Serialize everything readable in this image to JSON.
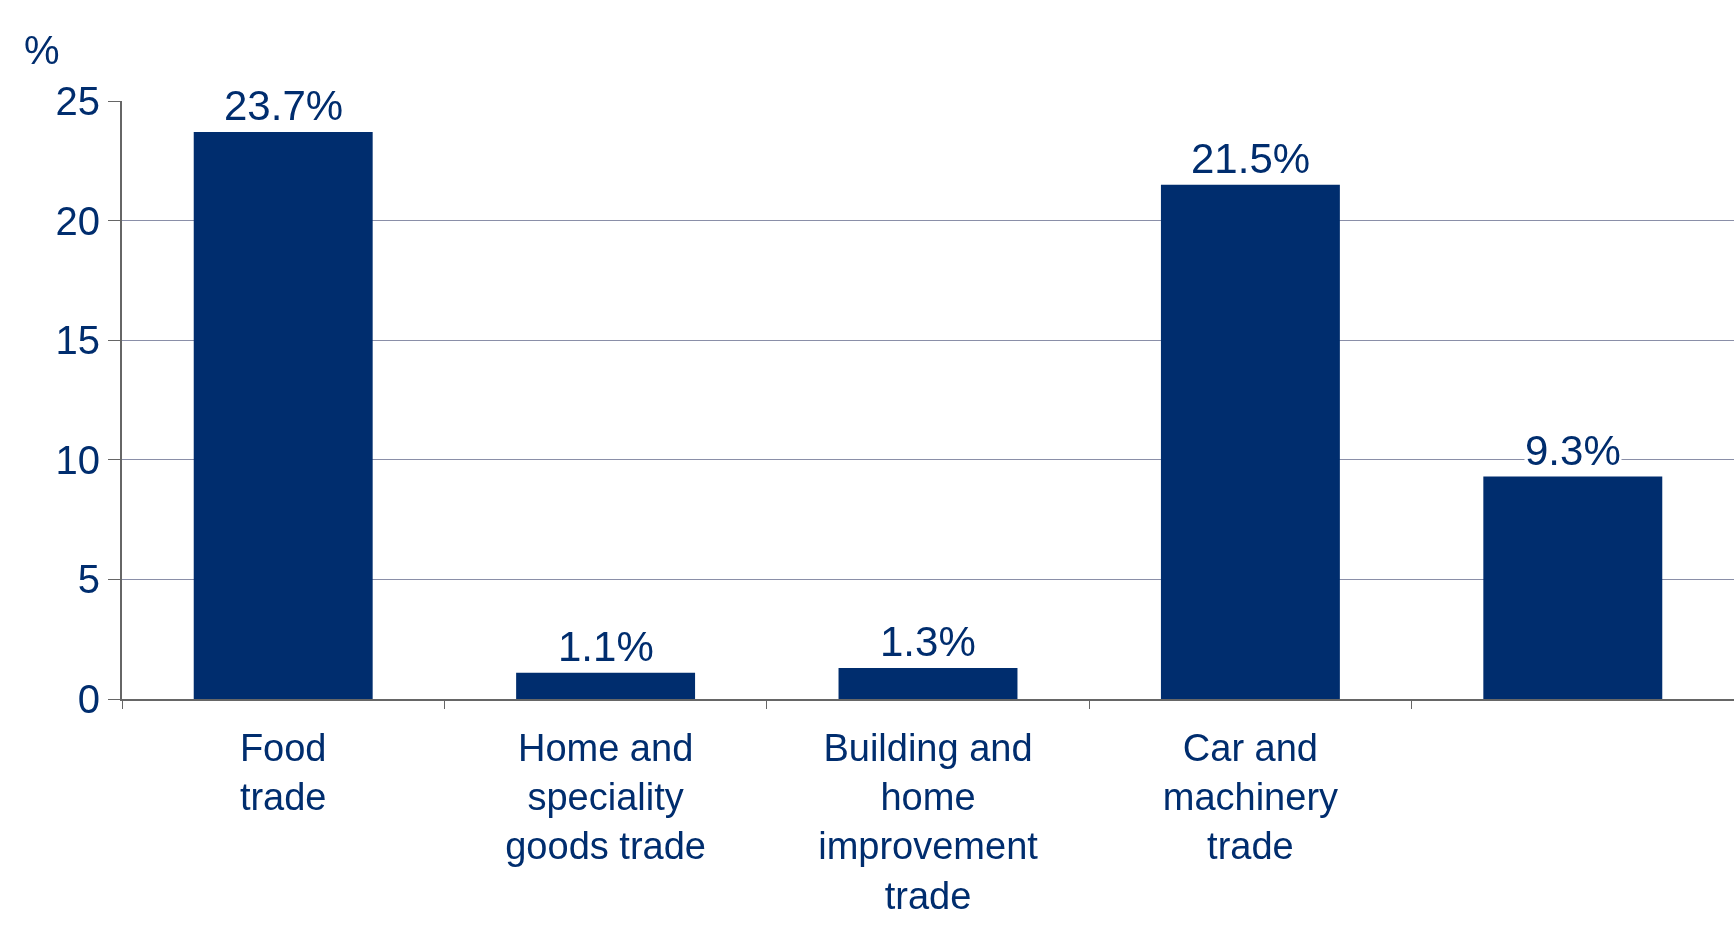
{
  "chart_data": {
    "type": "bar",
    "ylabel": "%",
    "categories": [
      "Food trade",
      "Home and speciality goods trade",
      "Building and home improvement trade",
      "Car and machinery trade",
      null
    ],
    "series": [
      {
        "color": "#002d6e",
        "values": [
          23.7,
          1.1,
          1.3,
          21.5,
          9.3
        ],
        "value_labels": [
          "23.7%",
          "1.1%",
          "1.3%",
          "21.5%",
          "9.3%"
        ]
      }
    ],
    "ylim": [
      0,
      25
    ],
    "yticks": [
      0,
      5,
      10,
      15,
      20,
      25
    ],
    "grid": "y"
  }
}
